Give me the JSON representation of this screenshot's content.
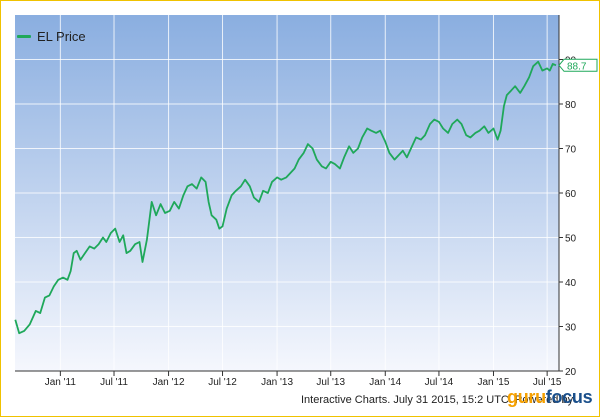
{
  "chart_data": {
    "type": "line",
    "legend_position": "top-left",
    "grid": true,
    "series": [
      {
        "name": "EL Price",
        "color": "#1fa85a",
        "points": [
          [
            "2010-08-02",
            31.5
          ],
          [
            "2010-08-15",
            28.5
          ],
          [
            "2010-09-01",
            29.0
          ],
          [
            "2010-09-20",
            30.5
          ],
          [
            "2010-10-10",
            33.5
          ],
          [
            "2010-10-25",
            33.0
          ],
          [
            "2010-11-10",
            36.5
          ],
          [
            "2010-11-25",
            37.0
          ],
          [
            "2010-12-10",
            39.0
          ],
          [
            "2010-12-25",
            40.5
          ],
          [
            "2011-01-10",
            41.0
          ],
          [
            "2011-01-25",
            40.5
          ],
          [
            "2011-02-05",
            42.5
          ],
          [
            "2011-02-15",
            46.5
          ],
          [
            "2011-02-25",
            47.0
          ],
          [
            "2011-03-10",
            45.0
          ],
          [
            "2011-03-25",
            46.5
          ],
          [
            "2011-04-10",
            48.0
          ],
          [
            "2011-04-25",
            47.5
          ],
          [
            "2011-05-10",
            48.5
          ],
          [
            "2011-05-25",
            50.0
          ],
          [
            "2011-06-05",
            49.0
          ],
          [
            "2011-06-20",
            51.0
          ],
          [
            "2011-07-05",
            52.0
          ],
          [
            "2011-07-20",
            49.0
          ],
          [
            "2011-08-01",
            50.5
          ],
          [
            "2011-08-12",
            46.5
          ],
          [
            "2011-08-25",
            47.0
          ],
          [
            "2011-09-10",
            48.5
          ],
          [
            "2011-09-25",
            49.0
          ],
          [
            "2011-10-05",
            44.5
          ],
          [
            "2011-10-20",
            49.5
          ],
          [
            "2011-11-05",
            58.0
          ],
          [
            "2011-11-20",
            55.0
          ],
          [
            "2011-12-05",
            57.5
          ],
          [
            "2011-12-20",
            55.5
          ],
          [
            "2012-01-05",
            56.0
          ],
          [
            "2012-01-20",
            58.0
          ],
          [
            "2012-02-05",
            56.5
          ],
          [
            "2012-02-20",
            59.5
          ],
          [
            "2012-03-05",
            61.5
          ],
          [
            "2012-03-20",
            62.0
          ],
          [
            "2012-04-05",
            61.0
          ],
          [
            "2012-04-20",
            63.5
          ],
          [
            "2012-05-05",
            62.5
          ],
          [
            "2012-05-15",
            58.0
          ],
          [
            "2012-05-25",
            55.0
          ],
          [
            "2012-06-10",
            54.0
          ],
          [
            "2012-06-20",
            52.0
          ],
          [
            "2012-07-01",
            52.5
          ],
          [
            "2012-07-15",
            56.5
          ],
          [
            "2012-08-01",
            59.5
          ],
          [
            "2012-08-15",
            60.5
          ],
          [
            "2012-09-01",
            61.5
          ],
          [
            "2012-09-15",
            63.0
          ],
          [
            "2012-10-01",
            61.5
          ],
          [
            "2012-10-15",
            59.0
          ],
          [
            "2012-11-01",
            58.0
          ],
          [
            "2012-11-15",
            60.5
          ],
          [
            "2012-12-01",
            60.0
          ],
          [
            "2012-12-15",
            62.5
          ],
          [
            "2013-01-01",
            63.5
          ],
          [
            "2013-01-15",
            63.0
          ],
          [
            "2013-02-01",
            63.5
          ],
          [
            "2013-02-15",
            64.5
          ],
          [
            "2013-03-01",
            65.5
          ],
          [
            "2013-03-15",
            67.5
          ],
          [
            "2013-04-01",
            69.0
          ],
          [
            "2013-04-15",
            71.0
          ],
          [
            "2013-05-01",
            70.0
          ],
          [
            "2013-05-15",
            67.5
          ],
          [
            "2013-06-01",
            66.0
          ],
          [
            "2013-06-15",
            65.5
          ],
          [
            "2013-07-01",
            67.0
          ],
          [
            "2013-07-15",
            66.5
          ],
          [
            "2013-08-01",
            65.5
          ],
          [
            "2013-08-15",
            68.0
          ],
          [
            "2013-09-01",
            70.5
          ],
          [
            "2013-09-15",
            69.0
          ],
          [
            "2013-10-01",
            70.0
          ],
          [
            "2013-10-15",
            72.5
          ],
          [
            "2013-11-01",
            74.5
          ],
          [
            "2013-11-15",
            74.0
          ],
          [
            "2013-12-01",
            73.5
          ],
          [
            "2013-12-15",
            74.0
          ],
          [
            "2014-01-01",
            71.5
          ],
          [
            "2014-01-15",
            69.0
          ],
          [
            "2014-02-01",
            67.5
          ],
          [
            "2014-02-15",
            68.5
          ],
          [
            "2014-03-01",
            69.5
          ],
          [
            "2014-03-15",
            68.0
          ],
          [
            "2014-04-01",
            70.5
          ],
          [
            "2014-04-15",
            72.5
          ],
          [
            "2014-05-01",
            72.0
          ],
          [
            "2014-05-15",
            73.0
          ],
          [
            "2014-06-01",
            75.5
          ],
          [
            "2014-06-15",
            76.5
          ],
          [
            "2014-07-01",
            76.0
          ],
          [
            "2014-07-15",
            74.5
          ],
          [
            "2014-08-01",
            73.5
          ],
          [
            "2014-08-15",
            75.5
          ],
          [
            "2014-09-01",
            76.5
          ],
          [
            "2014-09-15",
            75.5
          ],
          [
            "2014-10-01",
            73.0
          ],
          [
            "2014-10-15",
            72.5
          ],
          [
            "2014-11-01",
            73.5
          ],
          [
            "2014-11-15",
            74.0
          ],
          [
            "2014-12-01",
            75.0
          ],
          [
            "2014-12-15",
            73.5
          ],
          [
            "2015-01-01",
            74.5
          ],
          [
            "2015-01-15",
            72.0
          ],
          [
            "2015-01-25",
            74.0
          ],
          [
            "2015-02-05",
            79.5
          ],
          [
            "2015-02-15",
            82.0
          ],
          [
            "2015-03-01",
            83.0
          ],
          [
            "2015-03-15",
            84.0
          ],
          [
            "2015-04-01",
            82.5
          ],
          [
            "2015-04-15",
            84.0
          ],
          [
            "2015-05-01",
            86.0
          ],
          [
            "2015-05-15",
            88.5
          ],
          [
            "2015-06-01",
            89.5
          ],
          [
            "2015-06-15",
            87.5
          ],
          [
            "2015-07-01",
            88.0
          ],
          [
            "2015-07-10",
            87.5
          ],
          [
            "2015-07-20",
            89.0
          ],
          [
            "2015-07-31",
            88.7
          ]
        ]
      }
    ],
    "x_axis": {
      "type": "date",
      "range": [
        "2010-08-01",
        "2015-08-10"
      ],
      "ticks": [
        {
          "date": "2011-01-01",
          "label": "Jan '11"
        },
        {
          "date": "2011-07-01",
          "label": "Jul '11"
        },
        {
          "date": "2012-01-01",
          "label": "Jan '12"
        },
        {
          "date": "2012-07-01",
          "label": "Jul '12"
        },
        {
          "date": "2013-01-01",
          "label": "Jan '13"
        },
        {
          "date": "2013-07-01",
          "label": "Jul '13"
        },
        {
          "date": "2014-01-01",
          "label": "Jan '14"
        },
        {
          "date": "2014-07-01",
          "label": "Jul '14"
        },
        {
          "date": "2015-01-01",
          "label": "Jan '15"
        },
        {
          "date": "2015-07-01",
          "label": "Jul '15"
        }
      ]
    },
    "y_axis": {
      "range": [
        20,
        100
      ],
      "ticks": [
        20,
        30,
        40,
        50,
        60,
        70,
        80,
        90
      ],
      "position": "right"
    },
    "last_value_label": "88.7",
    "plot_background": {
      "top": "#8aaee0",
      "bottom": "#f5f7fd"
    },
    "grid_color": "#ffffff"
  },
  "footer_text": "Interactive Charts. July 31 2015, 15:2 UTC. Powered by",
  "brand": {
    "part1": "guru",
    "part2": "focus"
  }
}
